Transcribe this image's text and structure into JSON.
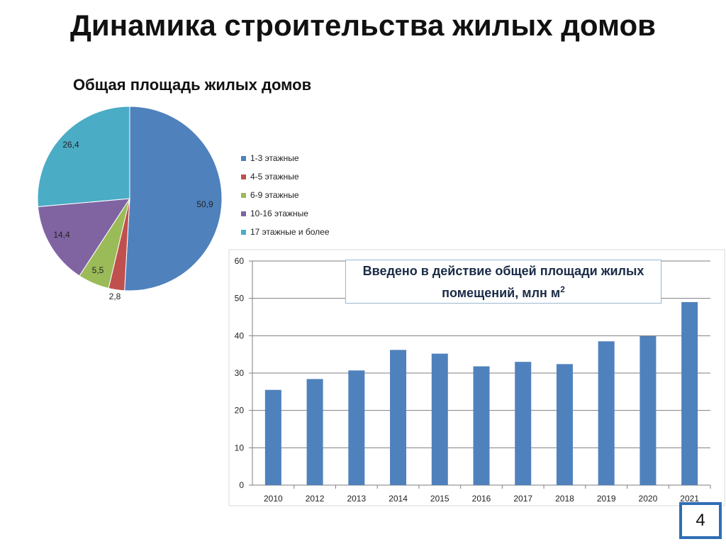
{
  "slide": {
    "title": "Динамика строительства жилых домов",
    "page_number": "4"
  },
  "pie_chart": {
    "title": "Общая площадь жилых домов"
  },
  "bar_chart": {
    "title_main": "Введено в действие общей площади жилых помещений, млн м",
    "title_superscript": "2"
  },
  "chart_data": [
    {
      "type": "pie",
      "title": "Общая площадь жилых домов",
      "labels": [
        "1-3 этажные",
        "4-5 этажные",
        "6-9 этажные",
        "10-16 этажные",
        "17 этажные и более"
      ],
      "values": [
        50.9,
        2.8,
        5.5,
        14.4,
        26.4
      ],
      "value_labels": [
        "50,9",
        "2,8",
        "5,5",
        "14,4",
        "26,4"
      ],
      "colors": [
        "#4f81bd",
        "#c0504d",
        "#9bbb59",
        "#8064a2",
        "#4bacc6"
      ],
      "legend": "right"
    },
    {
      "type": "bar",
      "title": "Введено в действие общей площади жилых помещений, млн м²",
      "categories": [
        "2010",
        "2012",
        "2013",
        "2014",
        "2015",
        "2016",
        "2017",
        "2018",
        "2019",
        "2020",
        "2021"
      ],
      "values": [
        25.5,
        28.4,
        30.7,
        36.2,
        35.2,
        31.8,
        33.0,
        32.4,
        38.5,
        39.9,
        49.0
      ],
      "ylim": [
        0,
        60
      ],
      "yticks": [
        0,
        10,
        20,
        30,
        40,
        50,
        60
      ],
      "grid": true,
      "color": "#4f81bd"
    }
  ]
}
